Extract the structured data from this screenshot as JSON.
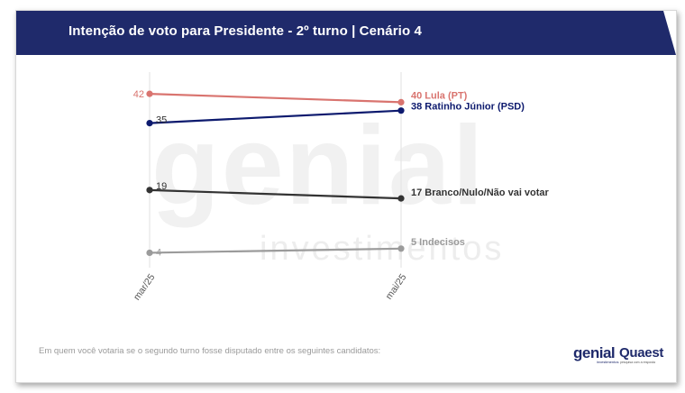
{
  "header": {
    "title": "Intenção de voto para Presidente - 2º turno | Cenário 4"
  },
  "footnote": "Em quem você votaria se o segundo turno fosse disputado entre os seguintes candidatos:",
  "watermark": {
    "main": "genial",
    "sub": "investimentos"
  },
  "logos": {
    "genial": "genial",
    "genial_sub": "investimentos",
    "quaest": "Quaest",
    "quaest_sub": "pesquisa com a resposta"
  },
  "chart_data": {
    "type": "line",
    "x": [
      "mar/25",
      "mai/25"
    ],
    "series": [
      {
        "name": "Lula (PT)",
        "values": [
          42,
          40
        ],
        "color": "#d9746f",
        "end_label": "40 Lula (PT)",
        "start_label": "42"
      },
      {
        "name": "Ratinho Júnior (PSD)",
        "values": [
          35,
          38
        ],
        "color": "#0d1a6e",
        "end_label": "38 Ratinho Júnior (PSD)",
        "start_label": "35"
      },
      {
        "name": "Branco/Nulo/Não vai votar",
        "values": [
          19,
          17
        ],
        "color": "#333333",
        "end_label": "17 Branco/Nulo/Não vai votar",
        "start_label": "19"
      },
      {
        "name": "Indecisos",
        "values": [
          4,
          5
        ],
        "color": "#9b9b9b",
        "end_label": "5 Indecisos",
        "start_label": "4"
      }
    ],
    "ylim": [
      0,
      50
    ],
    "grid": "vertical lines at each x",
    "legend": "none (direct labels at line ends)"
  }
}
